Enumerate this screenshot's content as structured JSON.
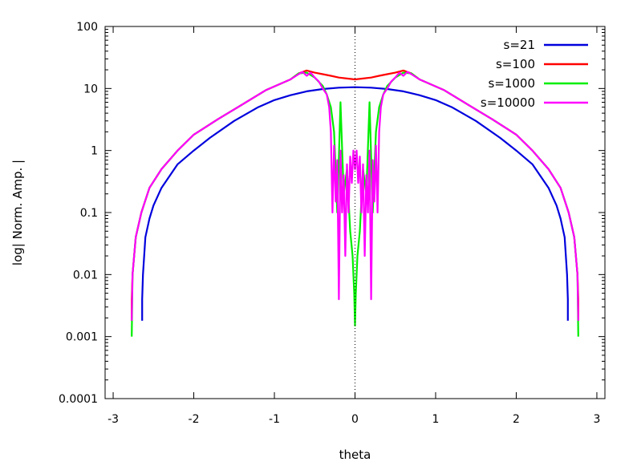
{
  "chart_data": {
    "type": "line",
    "title": "",
    "xlabel": "theta",
    "ylabel": "log| Norm. Amp. |",
    "y_scale": "log",
    "xlim": [
      -3.1,
      3.1
    ],
    "ylim": [
      0.0001,
      100
    ],
    "x_ticks": [
      -3,
      -2,
      -1,
      0,
      1,
      2,
      3
    ],
    "x_tick_labels": [
      "-3",
      "-2",
      "-1",
      "0",
      "1",
      "2",
      "3"
    ],
    "y_ticks": [
      0.0001,
      0.001,
      0.01,
      0.1,
      1,
      10,
      100
    ],
    "y_tick_labels": [
      "0.0001",
      "0.001",
      "0.01",
      "0.1",
      "1",
      "10",
      "100"
    ],
    "grid": false,
    "reference_line": {
      "x": 0,
      "style": "dotted"
    },
    "legend": {
      "position": "top-right"
    },
    "series": [
      {
        "name": "s=21",
        "color": "#0000dd",
        "x": [
          -2.64,
          -2.64,
          -2.63,
          -2.6,
          -2.55,
          -2.5,
          -2.4,
          -2.2,
          -2.0,
          -1.8,
          -1.5,
          -1.2,
          -1.0,
          -0.8,
          -0.6,
          -0.4,
          -0.2,
          0,
          0.2,
          0.4,
          0.6,
          0.8,
          1.0,
          1.2,
          1.5,
          1.8,
          2.0,
          2.2,
          2.4,
          2.5,
          2.55,
          2.6,
          2.63,
          2.64,
          2.64
        ],
        "y": [
          0.0018,
          0.004,
          0.01,
          0.04,
          0.08,
          0.13,
          0.25,
          0.6,
          1.0,
          1.6,
          3.0,
          5.0,
          6.5,
          7.8,
          9.0,
          9.8,
          10.3,
          10.5,
          10.3,
          9.8,
          9.0,
          7.8,
          6.5,
          5.0,
          3.0,
          1.6,
          1.0,
          0.6,
          0.25,
          0.13,
          0.08,
          0.04,
          0.01,
          0.004,
          0.0018
        ]
      },
      {
        "name": "s=100",
        "color": "#ff0000",
        "x": [
          -2.77,
          -2.77,
          -2.76,
          -2.72,
          -2.65,
          -2.55,
          -2.4,
          -2.2,
          -2.0,
          -1.7,
          -1.4,
          -1.1,
          -0.8,
          -0.7,
          -0.6,
          -0.5,
          -0.4,
          -0.3,
          -0.2,
          -0.1,
          0,
          0.1,
          0.2,
          0.3,
          0.4,
          0.5,
          0.6,
          0.7,
          0.8,
          1.1,
          1.4,
          1.7,
          2.0,
          2.2,
          2.4,
          2.55,
          2.65,
          2.72,
          2.76,
          2.77,
          2.77
        ],
        "y": [
          0.0018,
          0.004,
          0.01,
          0.04,
          0.1,
          0.25,
          0.5,
          1.0,
          1.8,
          3.2,
          5.5,
          9.5,
          14.0,
          17.5,
          19.5,
          18.0,
          17.0,
          16.0,
          15.0,
          14.5,
          14.0,
          14.5,
          15.0,
          16.0,
          17.0,
          18.0,
          19.5,
          17.5,
          14.0,
          9.5,
          5.5,
          3.2,
          1.8,
          1.0,
          0.5,
          0.25,
          0.1,
          0.04,
          0.01,
          0.004,
          0.0018
        ]
      },
      {
        "name": "s=1000",
        "color": "#00ee00",
        "x": [
          -2.77,
          -2.76,
          -2.72,
          -2.65,
          -2.55,
          -2.4,
          -2.2,
          -2.0,
          -1.7,
          -1.4,
          -1.1,
          -0.8,
          -0.7,
          -0.6,
          -0.5,
          -0.4,
          -0.35,
          -0.3,
          -0.26,
          -0.22,
          -0.18,
          -0.14,
          -0.1,
          -0.06,
          -0.03,
          -0.01,
          0,
          0.01,
          0.03,
          0.06,
          0.1,
          0.14,
          0.18,
          0.22,
          0.26,
          0.3,
          0.35,
          0.4,
          0.5,
          0.6,
          0.7,
          0.8,
          1.1,
          1.4,
          1.7,
          2.0,
          2.2,
          2.4,
          2.55,
          2.65,
          2.72,
          2.76,
          2.77
        ],
        "y": [
          0.001,
          0.01,
          0.04,
          0.1,
          0.25,
          0.5,
          1.0,
          1.8,
          3.2,
          5.5,
          9.5,
          14.0,
          17.5,
          18.0,
          15.0,
          11.0,
          8.0,
          5.0,
          2.0,
          0.1,
          6.0,
          0.2,
          0.5,
          0.05,
          0.02,
          0.005,
          0.0015,
          0.005,
          0.02,
          0.05,
          0.5,
          0.2,
          6.0,
          0.1,
          2.0,
          5.0,
          8.0,
          11.0,
          15.0,
          18.0,
          17.5,
          14.0,
          9.5,
          5.5,
          3.2,
          1.8,
          1.0,
          0.5,
          0.25,
          0.1,
          0.04,
          0.01,
          0.001
        ]
      },
      {
        "name": "s=10000",
        "color": "#ff00ff",
        "x": [
          -2.77,
          -2.76,
          -2.72,
          -2.65,
          -2.55,
          -2.4,
          -2.2,
          -2.0,
          -1.7,
          -1.4,
          -1.1,
          -0.8,
          -0.7,
          -0.65,
          -0.6,
          -0.55,
          -0.5,
          -0.45,
          -0.4,
          -0.35,
          -0.32,
          -0.3,
          -0.28,
          -0.26,
          -0.24,
          -0.22,
          -0.2,
          -0.18,
          -0.16,
          -0.14,
          -0.12,
          -0.1,
          -0.08,
          -0.06,
          -0.04,
          -0.02,
          0,
          0.02,
          0.04,
          0.06,
          0.08,
          0.1,
          0.12,
          0.14,
          0.16,
          0.18,
          0.2,
          0.22,
          0.24,
          0.26,
          0.28,
          0.3,
          0.32,
          0.35,
          0.4,
          0.45,
          0.5,
          0.55,
          0.6,
          0.65,
          0.7,
          0.8,
          1.1,
          1.4,
          1.7,
          2.0,
          2.2,
          2.4,
          2.55,
          2.65,
          2.72,
          2.76,
          2.77
        ],
        "y": [
          0.0018,
          0.01,
          0.04,
          0.1,
          0.25,
          0.5,
          1.0,
          1.8,
          3.2,
          5.5,
          9.5,
          14.0,
          17.0,
          18.5,
          16.0,
          18.0,
          15.0,
          13.0,
          10.0,
          8.0,
          5.0,
          2.0,
          0.1,
          1.2,
          0.15,
          0.7,
          0.004,
          1.0,
          0.1,
          0.4,
          0.02,
          0.6,
          0.1,
          0.8,
          0.3,
          1.0,
          0.5,
          1.0,
          0.3,
          0.8,
          0.1,
          0.6,
          0.02,
          0.4,
          0.1,
          1.0,
          0.004,
          0.7,
          0.15,
          1.2,
          0.1,
          2.0,
          5.0,
          8.0,
          10.0,
          13.0,
          15.0,
          18.0,
          16.0,
          18.5,
          17.0,
          14.0,
          9.5,
          5.5,
          3.2,
          1.8,
          1.0,
          0.5,
          0.25,
          0.1,
          0.04,
          0.01,
          0.0018
        ]
      }
    ]
  }
}
